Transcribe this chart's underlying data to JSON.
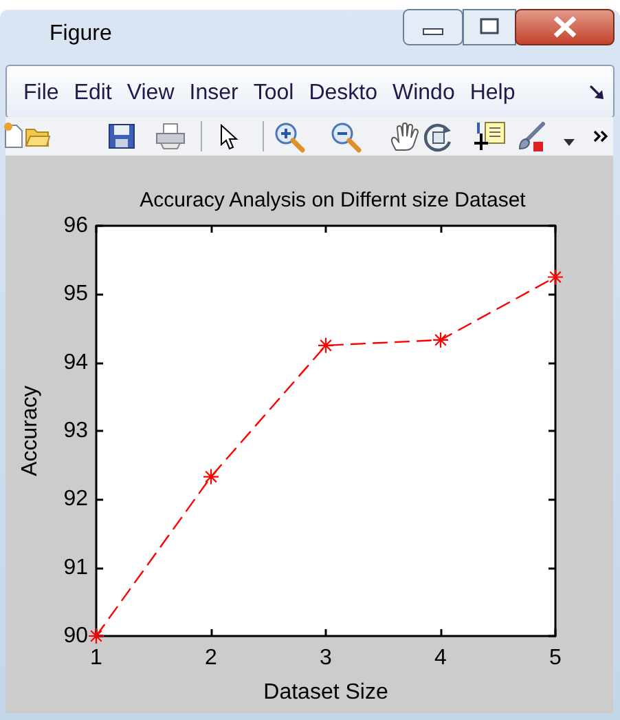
{
  "chart_data": {
    "type": "line",
    "title": "Accuracy Analysis on Differnt size Dataset",
    "xlabel": "Dataset Size",
    "ylabel": "Accuracy",
    "annotations": [
      "Figure",
      "File",
      "Edit",
      "View",
      "Inser",
      "Tool",
      "Deskto",
      "Windo",
      "Help"
    ],
    "x": [
      1,
      2,
      3,
      4,
      5
    ],
    "values": [
      90,
      92.33,
      94.25,
      94.33,
      95.25
    ],
    "color": "#ff0000",
    "xlim": [
      1,
      5
    ],
    "xticks": [
      1,
      2,
      3,
      4,
      5
    ],
    "ylim": [
      90,
      96
    ],
    "yticks": [
      90,
      91,
      92,
      93,
      94,
      95,
      96
    ],
    "grid": false,
    "marker": "star",
    "line_style": "dashed"
  }
}
